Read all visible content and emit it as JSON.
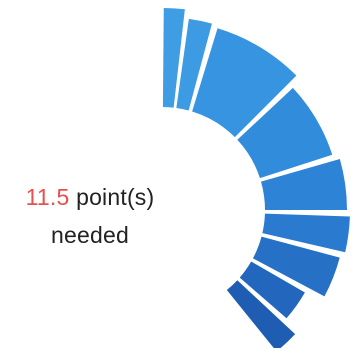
{
  "gauge": {
    "points_needed": "11.5",
    "points_label": "point(s)",
    "needed_label": "needed",
    "segments": [
      {
        "id": 1,
        "color": "#3f9ee3"
      },
      {
        "id": 2,
        "color": "#3c9be2"
      },
      {
        "id": 3,
        "color": "#3794e0"
      },
      {
        "id": 4,
        "color": "#328cdc"
      },
      {
        "id": 5,
        "color": "#2d83d6"
      },
      {
        "id": 6,
        "color": "#2a7acf"
      },
      {
        "id": 7,
        "color": "#2670c6"
      },
      {
        "id": 8,
        "color": "#2266bd"
      },
      {
        "id": 9,
        "color": "#1f5db3"
      }
    ]
  }
}
